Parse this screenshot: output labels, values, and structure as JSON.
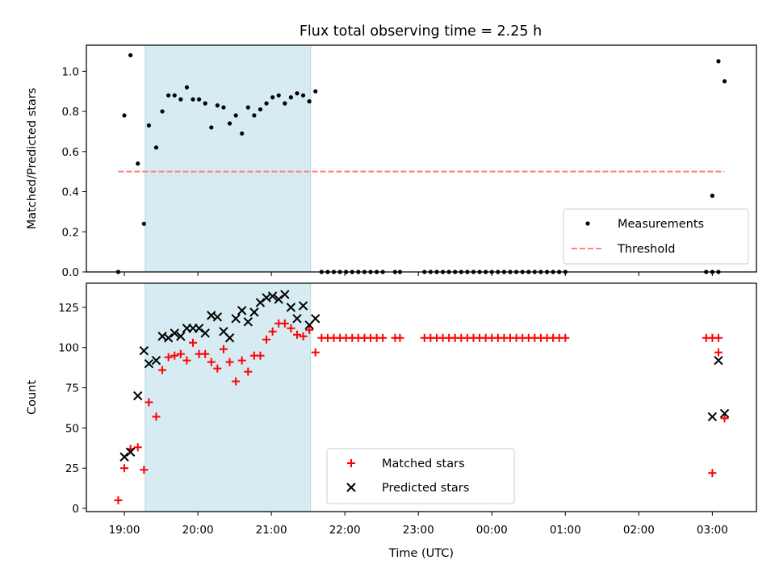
{
  "title": "Flux total observing time = 2.25 h",
  "colors": {
    "measurement": "#000000",
    "threshold": "#ff7f7f",
    "matched": "#ff0000",
    "predicted": "#000000",
    "shade": "#add8e6"
  },
  "chart_data": [
    {
      "type": "scatter",
      "ylabel": "Matched/Predicted stars",
      "xlabel": "",
      "ylim": [
        0,
        1.13
      ],
      "yticks": [
        0.0,
        0.2,
        0.4,
        0.6,
        0.8,
        1.0
      ],
      "ytick_labels": [
        "0.0",
        "0.2",
        "0.4",
        "0.6",
        "0.8",
        "1.0"
      ],
      "legend_position": "lower right",
      "grid": false,
      "shaded_region": {
        "x_start": "19:17",
        "x_end": "21:32"
      },
      "threshold": {
        "name": "Threshold",
        "value": 0.5,
        "x_start": "18:55",
        "x_end": "03:10",
        "style": "dashed"
      },
      "series": [
        {
          "name": "Measurements",
          "marker": "dot",
          "points": [
            [
              "18:55",
              0.0
            ],
            [
              "19:00",
              0.78
            ],
            [
              "19:05",
              1.08
            ],
            [
              "19:11",
              0.54
            ],
            [
              "19:16",
              0.24
            ],
            [
              "19:20",
              0.73
            ],
            [
              "19:26",
              0.62
            ],
            [
              "19:31",
              0.8
            ],
            [
              "19:36",
              0.88
            ],
            [
              "19:41",
              0.88
            ],
            [
              "19:46",
              0.86
            ],
            [
              "19:51",
              0.92
            ],
            [
              "19:56",
              0.86
            ],
            [
              "20:01",
              0.86
            ],
            [
              "20:06",
              0.84
            ],
            [
              "20:11",
              0.72
            ],
            [
              "20:16",
              0.83
            ],
            [
              "20:21",
              0.82
            ],
            [
              "20:26",
              0.74
            ],
            [
              "20:31",
              0.78
            ],
            [
              "20:36",
              0.69
            ],
            [
              "20:41",
              0.82
            ],
            [
              "20:46",
              0.78
            ],
            [
              "20:51",
              0.81
            ],
            [
              "20:56",
              0.84
            ],
            [
              "21:01",
              0.87
            ],
            [
              "21:06",
              0.88
            ],
            [
              "21:11",
              0.84
            ],
            [
              "21:16",
              0.87
            ],
            [
              "21:21",
              0.89
            ],
            [
              "21:26",
              0.88
            ],
            [
              "21:31",
              0.85
            ],
            [
              "21:36",
              0.9
            ],
            [
              "21:41",
              0.0
            ],
            [
              "21:46",
              0.0
            ],
            [
              "21:51",
              0.0
            ],
            [
              "21:56",
              0.0
            ],
            [
              "22:01",
              0.0
            ],
            [
              "22:06",
              0.0
            ],
            [
              "22:11",
              0.0
            ],
            [
              "22:16",
              0.0
            ],
            [
              "22:21",
              0.0
            ],
            [
              "22:26",
              0.0
            ],
            [
              "22:31",
              0.0
            ],
            [
              "22:41",
              0.0
            ],
            [
              "22:45",
              0.0
            ],
            [
              "23:05",
              0.0
            ],
            [
              "23:10",
              0.0
            ],
            [
              "23:15",
              0.0
            ],
            [
              "23:20",
              0.0
            ],
            [
              "23:25",
              0.0
            ],
            [
              "23:30",
              0.0
            ],
            [
              "23:35",
              0.0
            ],
            [
              "23:40",
              0.0
            ],
            [
              "23:45",
              0.0
            ],
            [
              "23:50",
              0.0
            ],
            [
              "23:55",
              0.0
            ],
            [
              "00:00",
              0.0
            ],
            [
              "00:05",
              0.0
            ],
            [
              "00:10",
              0.0
            ],
            [
              "00:15",
              0.0
            ],
            [
              "00:20",
              0.0
            ],
            [
              "00:25",
              0.0
            ],
            [
              "00:30",
              0.0
            ],
            [
              "00:35",
              0.0
            ],
            [
              "00:40",
              0.0
            ],
            [
              "00:45",
              0.0
            ],
            [
              "00:50",
              0.0
            ],
            [
              "00:55",
              0.0
            ],
            [
              "01:00",
              0.0
            ],
            [
              "02:55",
              0.0
            ],
            [
              "03:00",
              0.0
            ],
            [
              "03:05",
              0.0
            ],
            [
              "03:05",
              1.05
            ],
            [
              "03:10",
              0.95
            ],
            [
              "03:00",
              0.38
            ]
          ]
        }
      ]
    },
    {
      "type": "scatter",
      "ylabel": "Count",
      "xlabel": "Time (UTC)",
      "ylim": [
        -2,
        140
      ],
      "yticks": [
        0,
        25,
        50,
        75,
        100,
        125
      ],
      "ytick_labels": [
        "0",
        "25",
        "50",
        "75",
        "100",
        "125"
      ],
      "xticks": [
        "19:00",
        "20:00",
        "21:00",
        "22:00",
        "23:00",
        "00:00",
        "01:00",
        "02:00",
        "03:00"
      ],
      "legend_position": "lower center",
      "grid": false,
      "shaded_region": {
        "x_start": "19:17",
        "x_end": "21:32"
      },
      "series": [
        {
          "name": "Matched stars",
          "marker": "plus",
          "points": [
            [
              "18:55",
              5
            ],
            [
              "19:00",
              25
            ],
            [
              "19:05",
              37
            ],
            [
              "19:11",
              38
            ],
            [
              "19:16",
              24
            ],
            [
              "19:20",
              66
            ],
            [
              "19:26",
              57
            ],
            [
              "19:31",
              86
            ],
            [
              "19:36",
              94
            ],
            [
              "19:41",
              95
            ],
            [
              "19:46",
              96
            ],
            [
              "19:51",
              92
            ],
            [
              "19:56",
              103
            ],
            [
              "20:01",
              96
            ],
            [
              "20:06",
              96
            ],
            [
              "20:11",
              91
            ],
            [
              "20:16",
              87
            ],
            [
              "20:21",
              99
            ],
            [
              "20:26",
              91
            ],
            [
              "20:31",
              79
            ],
            [
              "20:36",
              92
            ],
            [
              "20:41",
              85
            ],
            [
              "20:46",
              95
            ],
            [
              "20:51",
              95
            ],
            [
              "20:56",
              105
            ],
            [
              "21:01",
              110
            ],
            [
              "21:06",
              115
            ],
            [
              "21:11",
              115
            ],
            [
              "21:16",
              112
            ],
            [
              "21:21",
              108
            ],
            [
              "21:26",
              107
            ],
            [
              "21:31",
              111
            ],
            [
              "21:36",
              97
            ],
            [
              "21:41",
              106
            ],
            [
              "21:46",
              106
            ],
            [
              "21:51",
              106
            ],
            [
              "21:56",
              106
            ],
            [
              "22:01",
              106
            ],
            [
              "22:06",
              106
            ],
            [
              "22:11",
              106
            ],
            [
              "22:16",
              106
            ],
            [
              "22:21",
              106
            ],
            [
              "22:26",
              106
            ],
            [
              "22:31",
              106
            ],
            [
              "22:41",
              106
            ],
            [
              "22:45",
              106
            ],
            [
              "23:05",
              106
            ],
            [
              "23:10",
              106
            ],
            [
              "23:15",
              106
            ],
            [
              "23:20",
              106
            ],
            [
              "23:25",
              106
            ],
            [
              "23:30",
              106
            ],
            [
              "23:35",
              106
            ],
            [
              "23:40",
              106
            ],
            [
              "23:45",
              106
            ],
            [
              "23:50",
              106
            ],
            [
              "23:55",
              106
            ],
            [
              "00:00",
              106
            ],
            [
              "00:05",
              106
            ],
            [
              "00:10",
              106
            ],
            [
              "00:15",
              106
            ],
            [
              "00:20",
              106
            ],
            [
              "00:25",
              106
            ],
            [
              "00:30",
              106
            ],
            [
              "00:35",
              106
            ],
            [
              "00:40",
              106
            ],
            [
              "00:45",
              106
            ],
            [
              "00:50",
              106
            ],
            [
              "00:55",
              106
            ],
            [
              "01:00",
              106
            ],
            [
              "02:55",
              106
            ],
            [
              "03:00",
              106
            ],
            [
              "03:05",
              106
            ],
            [
              "03:05",
              97
            ],
            [
              "03:10",
              56
            ],
            [
              "03:00",
              22
            ]
          ]
        },
        {
          "name": "Predicted stars",
          "marker": "x",
          "points": [
            [
              "19:00",
              32
            ],
            [
              "19:05",
              35
            ],
            [
              "19:11",
              70
            ],
            [
              "19:16",
              98
            ],
            [
              "19:20",
              90
            ],
            [
              "19:26",
              92
            ],
            [
              "19:31",
              107
            ],
            [
              "19:36",
              106
            ],
            [
              "19:41",
              109
            ],
            [
              "19:46",
              107
            ],
            [
              "19:51",
              112
            ],
            [
              "19:56",
              112
            ],
            [
              "20:01",
              112
            ],
            [
              "20:06",
              109
            ],
            [
              "20:11",
              120
            ],
            [
              "20:16",
              119
            ],
            [
              "20:21",
              110
            ],
            [
              "20:26",
              106
            ],
            [
              "20:31",
              118
            ],
            [
              "20:36",
              123
            ],
            [
              "20:41",
              116
            ],
            [
              "20:46",
              122
            ],
            [
              "20:51",
              128
            ],
            [
              "20:56",
              131
            ],
            [
              "21:01",
              132
            ],
            [
              "21:06",
              130
            ],
            [
              "21:11",
              133
            ],
            [
              "21:16",
              125
            ],
            [
              "21:21",
              118
            ],
            [
              "21:26",
              126
            ],
            [
              "21:31",
              114
            ],
            [
              "21:36",
              118
            ],
            [
              "03:00",
              57
            ],
            [
              "03:05",
              92
            ],
            [
              "03:10",
              59
            ]
          ]
        }
      ]
    }
  ]
}
